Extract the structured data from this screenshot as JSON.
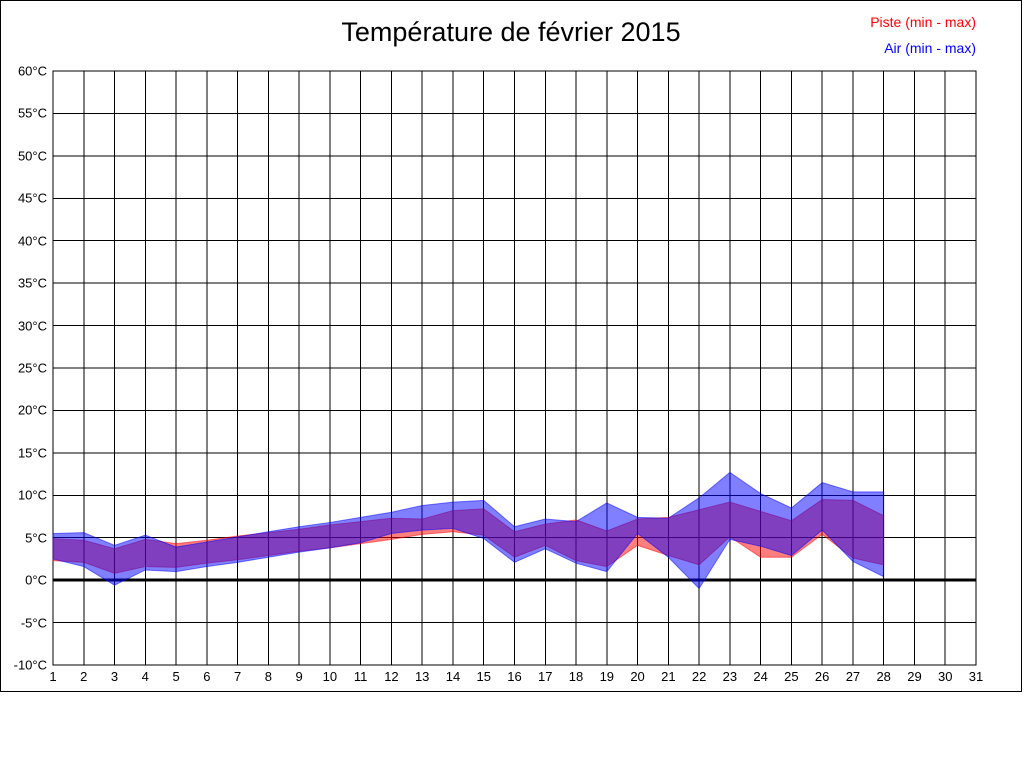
{
  "title": "Température de février 2015",
  "legend": [
    {
      "label": "Piste (min - max)",
      "color": "#ff0000"
    },
    {
      "label": "Air (min - max)",
      "color": "#0000ff"
    }
  ],
  "chart_data": {
    "type": "area",
    "title": "Température de février 2015",
    "xlabel": "",
    "ylabel": "",
    "y_unit": "°C",
    "xlim": [
      1,
      31
    ],
    "ylim": [
      -10,
      60
    ],
    "y_tick_step": 5,
    "grid": true,
    "zero_line_value": 0,
    "legend_position": "top-right",
    "x_ticks": [
      1,
      2,
      3,
      4,
      5,
      6,
      7,
      8,
      9,
      10,
      11,
      12,
      13,
      14,
      15,
      16,
      17,
      18,
      19,
      20,
      21,
      22,
      23,
      24,
      25,
      26,
      27,
      28,
      29,
      30,
      31
    ],
    "y_ticks": [
      {
        "value": 60,
        "label": "60°C"
      },
      {
        "value": 55,
        "label": "55°C"
      },
      {
        "value": 50,
        "label": "50°C"
      },
      {
        "value": 45,
        "label": "45°C"
      },
      {
        "value": 40,
        "label": "40°C"
      },
      {
        "value": 35,
        "label": "35°C"
      },
      {
        "value": 30,
        "label": "30°C"
      },
      {
        "value": 25,
        "label": "25°C"
      },
      {
        "value": 20,
        "label": "20°C"
      },
      {
        "value": 15,
        "label": "15°C"
      },
      {
        "value": 10,
        "label": "10°C"
      },
      {
        "value": 5,
        "label": "5°C"
      },
      {
        "value": 0,
        "label": "0°C"
      },
      {
        "value": -5,
        "label": "-5°C"
      },
      {
        "value": -10,
        "label": "-10°C"
      }
    ],
    "days": [
      1,
      2,
      3,
      4,
      5,
      6,
      7,
      8,
      9,
      10,
      11,
      12,
      13,
      14,
      15,
      16,
      17,
      18,
      19,
      20,
      21,
      22,
      23,
      24,
      25,
      26,
      27,
      28
    ],
    "series": [
      {
        "name": "Piste (min - max)",
        "color": "#ff0000",
        "opacity": 0.5,
        "min": [
          2.3,
          2.1,
          0.8,
          1.6,
          1.5,
          2.0,
          2.4,
          2.9,
          3.4,
          3.8,
          4.3,
          4.8,
          5.4,
          5.7,
          5.3,
          2.7,
          4.1,
          2.3,
          1.6,
          4.1,
          2.9,
          1.8,
          5.1,
          2.7,
          2.7,
          5.4,
          2.6,
          1.8
        ],
        "max": [
          4.9,
          4.7,
          3.7,
          4.8,
          4.3,
          4.7,
          5.2,
          5.6,
          6.0,
          6.5,
          6.9,
          7.3,
          7.2,
          8.2,
          8.4,
          5.7,
          6.6,
          7.1,
          5.8,
          7.2,
          7.4,
          8.3,
          9.2,
          8.1,
          7.0,
          9.5,
          9.4,
          7.6
        ]
      },
      {
        "name": "Air (min - max)",
        "color": "#0000ff",
        "opacity": 0.5,
        "min": [
          2.5,
          1.6,
          -0.6,
          1.2,
          1.0,
          1.6,
          2.1,
          2.7,
          3.3,
          3.8,
          4.4,
          5.5,
          5.9,
          6.1,
          4.9,
          2.1,
          3.7,
          2.0,
          1.0,
          5.5,
          2.7,
          -1.0,
          4.8,
          4.0,
          2.9,
          5.9,
          2.2,
          0.4
        ],
        "max": [
          5.5,
          5.6,
          4.1,
          5.3,
          3.9,
          4.5,
          5.1,
          5.7,
          6.3,
          6.8,
          7.4,
          8.0,
          8.8,
          9.2,
          9.4,
          6.3,
          7.2,
          6.9,
          9.1,
          7.4,
          7.3,
          9.7,
          12.7,
          10.2,
          8.5,
          11.5,
          10.4,
          10.4
        ]
      }
    ]
  }
}
